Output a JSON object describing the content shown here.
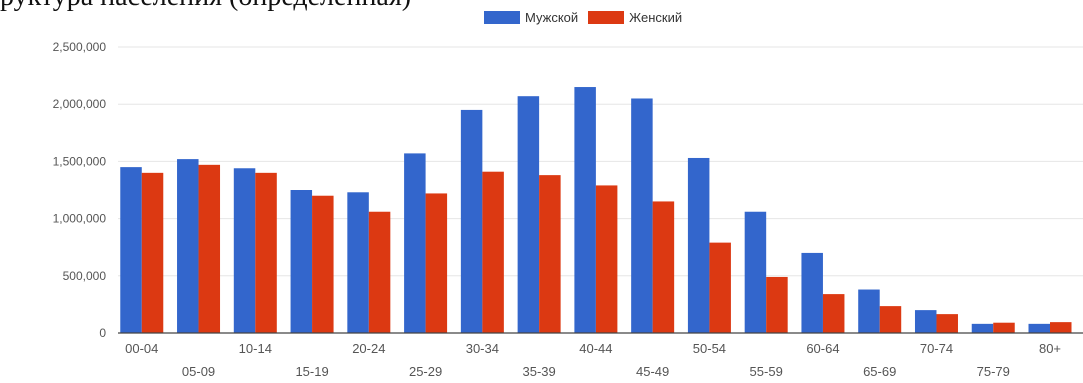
{
  "caption": "руктура населения (определенная)",
  "colors": {
    "male": "#3366cc",
    "female": "#dc3912",
    "grid": "#e6e6e6",
    "axis": "#444444",
    "tick": "#555555"
  },
  "chart_data": {
    "type": "bar",
    "title": "",
    "xlabel": "",
    "ylabel": "",
    "ylim": [
      0,
      2500000
    ],
    "yticks": [
      0,
      500000,
      1000000,
      1500000,
      2000000,
      2500000
    ],
    "ytick_labels": [
      "0",
      "500,000",
      "1,000,000",
      "1,500,000",
      "2,000,000",
      "2,500,000"
    ],
    "grid": true,
    "legend_position": "top-center",
    "categories": [
      "00-04",
      "05-09",
      "10-14",
      "15-19",
      "20-24",
      "25-29",
      "30-34",
      "35-39",
      "40-44",
      "45-49",
      "50-54",
      "55-59",
      "60-64",
      "65-69",
      "70-74",
      "75-79",
      "80+"
    ],
    "series": [
      {
        "name": "Мужской",
        "color": "#3366cc",
        "values": [
          1450000,
          1520000,
          1440000,
          1250000,
          1230000,
          1570000,
          1950000,
          2070000,
          2150000,
          2050000,
          1530000,
          1060000,
          700000,
          380000,
          200000,
          80000,
          80000
        ]
      },
      {
        "name": "Женский",
        "color": "#dc3912",
        "values": [
          1400000,
          1470000,
          1400000,
          1200000,
          1060000,
          1220000,
          1410000,
          1380000,
          1290000,
          1150000,
          790000,
          490000,
          340000,
          235000,
          165000,
          90000,
          95000
        ]
      }
    ]
  }
}
